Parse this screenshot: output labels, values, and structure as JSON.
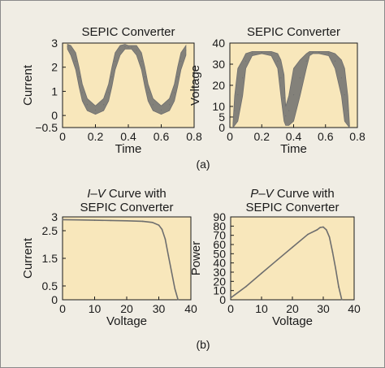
{
  "panel_labels": {
    "a": "(a)",
    "b": "(b)"
  },
  "colors": {
    "plot_bg": "#f8e7bb",
    "trace": "#6e6e6e",
    "axis": "#1a1a1a",
    "figure_bg": "#f0ede4"
  },
  "chart_data": [
    {
      "type": "line",
      "title": "SEPIC Converter",
      "xlabel": "Time",
      "ylabel": "Current",
      "xlim": [
        0,
        0.8
      ],
      "ylim": [
        -0.5,
        3
      ],
      "xticks": [
        0,
        0.2,
        0.4,
        0.6,
        0.8
      ],
      "xtick_labels": [
        "0",
        "0.2",
        "0.4",
        "0.6",
        "0.8"
      ],
      "yticks": [
        -0.5,
        0,
        1,
        2,
        3
      ],
      "ytick_labels": [
        "−0.5",
        "0",
        "1",
        "2",
        "3"
      ],
      "grid": false,
      "series": [
        {
          "x": [
            0.03,
            0.05,
            0.08,
            0.1,
            0.12,
            0.15,
            0.2,
            0.25,
            0.28,
            0.3,
            0.32,
            0.35,
            0.38,
            0.4,
            0.42,
            0.45,
            0.48,
            0.5,
            0.52,
            0.55,
            0.6,
            0.65,
            0.68,
            0.7,
            0.72,
            0.75
          ],
          "upper": [
            2.95,
            2.9,
            2.6,
            2.0,
            1.3,
            0.7,
            0.4,
            0.7,
            1.3,
            2.0,
            2.6,
            2.9,
            2.95,
            2.9,
            2.9,
            2.9,
            2.6,
            2.0,
            1.3,
            0.7,
            0.4,
            0.7,
            1.3,
            2.0,
            2.6,
            2.9
          ],
          "lower": [
            2.75,
            2.5,
            1.9,
            1.2,
            0.6,
            0.2,
            0.05,
            0.2,
            0.6,
            1.2,
            1.9,
            2.5,
            2.75,
            2.75,
            2.75,
            2.5,
            1.9,
            1.2,
            0.6,
            0.2,
            0.05,
            0.2,
            0.6,
            1.2,
            1.9,
            2.5
          ]
        }
      ]
    },
    {
      "type": "line",
      "title": "SEPIC Converter",
      "xlabel": "Time",
      "ylabel": "Voltage",
      "xlim": [
        0,
        0.8
      ],
      "ylim": [
        0,
        40
      ],
      "xticks": [
        0,
        0.2,
        0.4,
        0.6,
        0.8
      ],
      "xtick_labels": [
        "0",
        "0.2",
        "0.4",
        "0.6",
        "0.8"
      ],
      "yticks": [
        0,
        5,
        10,
        20,
        30,
        40
      ],
      "ytick_labels": [
        "0",
        "5",
        "10",
        "20",
        "30",
        "40"
      ],
      "grid": false,
      "series": [
        {
          "x": [
            0.02,
            0.03,
            0.05,
            0.08,
            0.1,
            0.14,
            0.2,
            0.26,
            0.3,
            0.32,
            0.34,
            0.35,
            0.37,
            0.4,
            0.44,
            0.48,
            0.5,
            0.52,
            0.56,
            0.62,
            0.66,
            0.7,
            0.72,
            0.74,
            0.75
          ],
          "upper": [
            2,
            15,
            28,
            32,
            35,
            36,
            36,
            36,
            35,
            32,
            25,
            10,
            15,
            28,
            32,
            35,
            36,
            36,
            36,
            36,
            35,
            32,
            28,
            15,
            2
          ],
          "lower": [
            0,
            1,
            3,
            15,
            28,
            34,
            35,
            34,
            28,
            15,
            3,
            1,
            1,
            3,
            15,
            28,
            34,
            35,
            35,
            34,
            28,
            15,
            3,
            1,
            0
          ]
        }
      ]
    },
    {
      "type": "line",
      "title": "I–V Curve with SEPIC Converter",
      "title_parts": [
        "I",
        "–",
        "V",
        " Curve with",
        "SEPIC Converter"
      ],
      "xlabel": "Voltage",
      "ylabel": "Current",
      "xlim": [
        0,
        40
      ],
      "ylim": [
        0,
        3
      ],
      "xticks": [
        0,
        10,
        20,
        30,
        40
      ],
      "xtick_labels": [
        "0",
        "10",
        "20",
        "30",
        "40"
      ],
      "yticks": [
        0,
        0.5,
        1.5,
        2.5,
        3
      ],
      "ytick_labels": [
        "0",
        "0.5",
        "1.5",
        "2.5",
        "3"
      ],
      "grid": false,
      "series": [
        {
          "x": [
            0,
            5,
            10,
            15,
            20,
            25,
            28,
            30,
            31,
            32,
            33,
            34,
            35,
            36
          ],
          "y": [
            2.9,
            2.89,
            2.88,
            2.87,
            2.86,
            2.84,
            2.8,
            2.7,
            2.55,
            2.2,
            1.6,
            1.0,
            0.4,
            0.0
          ]
        }
      ]
    },
    {
      "type": "line",
      "title": "P–V Curve with SEPIC Converter",
      "title_parts": [
        "P",
        "–",
        "V",
        " Curve with",
        "SEPIC Converter"
      ],
      "xlabel": "Voltage",
      "ylabel": "Power",
      "xlim": [
        0,
        40
      ],
      "ylim": [
        0,
        90
      ],
      "xticks": [
        0,
        10,
        20,
        30,
        40
      ],
      "xtick_labels": [
        "0",
        "10",
        "20",
        "30",
        "40"
      ],
      "yticks": [
        0,
        10,
        20,
        30,
        40,
        50,
        60,
        70,
        80,
        90
      ],
      "ytick_labels": [
        "0",
        "10",
        "20",
        "30",
        "40",
        "50",
        "60",
        "70",
        "80",
        "90"
      ],
      "grid": false,
      "series": [
        {
          "x": [
            0,
            5,
            10,
            15,
            20,
            25,
            28,
            29,
            30,
            31,
            32,
            33,
            34,
            35,
            36
          ],
          "y": [
            2,
            14.5,
            28.8,
            43,
            57,
            71,
            76,
            78.5,
            79,
            76,
            68,
            52,
            34,
            14,
            0
          ]
        }
      ]
    }
  ]
}
